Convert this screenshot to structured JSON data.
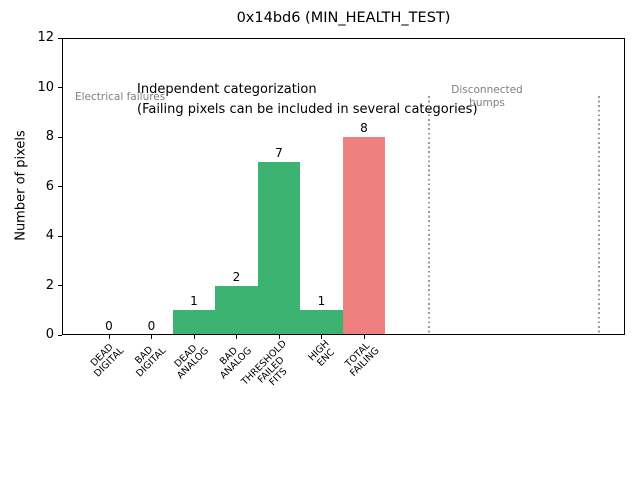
{
  "window": {
    "title": "0x14bd6 (MIN_HEALTH_TEST)"
  },
  "chart_data": {
    "type": "bar",
    "title": "0x14bd6 (MIN_HEALTH_TEST)",
    "ylabel": "Number of pixels",
    "xlabel": "",
    "ylim": [
      0,
      12
    ],
    "yticks": [
      0,
      2,
      4,
      6,
      8,
      10,
      12
    ],
    "grid": false,
    "legend": "none",
    "categories": [
      "DEAD DIGITAL",
      "BAD DIGITAL",
      "DEAD ANALOG",
      "BAD ANALOG",
      "THRESHOLD FAILED FITS",
      "HIGH ENC",
      "TOTAL FAILING"
    ],
    "category_label_lines": [
      [
        "DEAD",
        "DIGITAL"
      ],
      [
        "BAD",
        "DIGITAL"
      ],
      [
        "DEAD",
        "ANALOG"
      ],
      [
        "BAD",
        "ANALOG"
      ],
      [
        "THRESHOLD",
        "FAILED",
        "FITS"
      ],
      [
        "HIGH",
        "ENC"
      ],
      [
        "TOTAL",
        "FAILING"
      ]
    ],
    "values": [
      0,
      0,
      1,
      2,
      7,
      1,
      8
    ],
    "bar_value_labels": [
      "0",
      "0",
      "1",
      "2",
      "7",
      "1",
      "8"
    ],
    "bar_colors": [
      "#3cb371",
      "#3cb371",
      "#3cb371",
      "#3cb371",
      "#3cb371",
      "#3cb371",
      "#f08080"
    ],
    "annotations": {
      "note_line1": "Independent categorization",
      "note_line2": "(Failing pixels can be included in several categories)",
      "left_group_label": "Electrical failures",
      "right_group_label_lines": [
        "Disconnected",
        "bumps"
      ],
      "group_label_color": "#7f7f7f"
    },
    "separator_lines": {
      "style": "dotted",
      "color": "#9a9a9a",
      "count": 2
    }
  },
  "colors": {
    "bar_green": "#3cb371",
    "bar_red": "#f08080",
    "muted_text": "#7f7f7f",
    "separator": "#9a9a9a",
    "axes": "#000000",
    "background": "#ffffff"
  }
}
